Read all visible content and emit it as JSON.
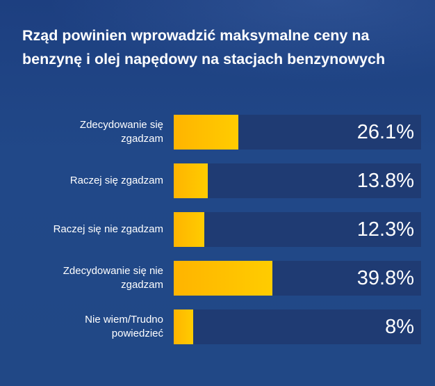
{
  "chart_data": {
    "type": "bar",
    "orientation": "horizontal",
    "title": "Rząd powinien wprowadzić maksymalne ceny na benzynę i olej napędowy na stacjach benzynowych",
    "categories": [
      "Zdecydowanie się zgadzam",
      "Raczej się zgadzam",
      "Raczej się nie zgadzam",
      "Zdecydowanie się nie zgadzam",
      "Nie wiem/Trudno powiedzieć"
    ],
    "values": [
      26.1,
      13.8,
      12.3,
      39.8,
      8
    ],
    "value_labels": [
      "26.1%",
      "13.8%",
      "12.3%",
      "39.8%",
      "8%"
    ],
    "xlabel": "",
    "ylabel": "",
    "xlim": [
      0,
      100
    ],
    "grid": false,
    "legend": null
  },
  "colors": {
    "background": "#214886",
    "track": "#1f3b73",
    "bar_start": "#ffb400",
    "bar_end": "#ffcc00",
    "text": "#ffffff"
  },
  "rows": [
    {
      "label": "Zdecydowanie się zgadzam",
      "value": 26.1,
      "display": "26.1%"
    },
    {
      "label": "Raczej się zgadzam",
      "value": 13.8,
      "display": "13.8%"
    },
    {
      "label": "Raczej się nie zgadzam",
      "value": 12.3,
      "display": "12.3%"
    },
    {
      "label": "Zdecydowanie się nie zgadzam",
      "value": 39.8,
      "display": "39.8%"
    },
    {
      "label": "Nie wiem/Trudno powiedzieć",
      "value": 8,
      "display": "8%"
    }
  ]
}
